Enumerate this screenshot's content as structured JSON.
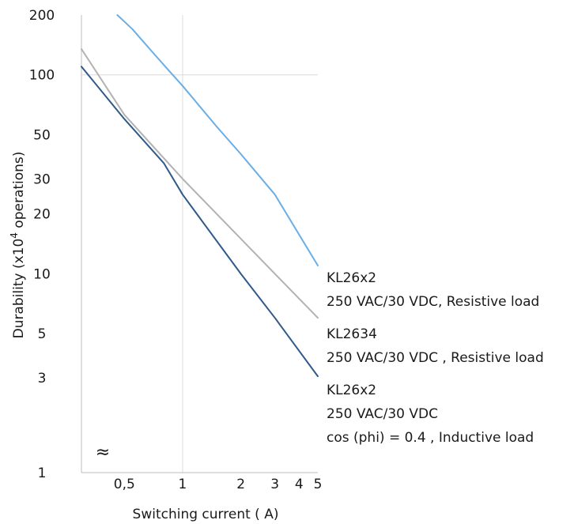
{
  "chart_data": {
    "type": "line",
    "title": "",
    "xlabel": "Switching current ( A)",
    "ylabel_parts": {
      "before": "Durability (x10",
      "sup": "4",
      "after": " operations)"
    },
    "x_scale": "log",
    "y_scale": "log",
    "xlim": [
      0.3,
      5
    ],
    "ylim": [
      1,
      200
    ],
    "x_ticks": [
      {
        "value": 0.5,
        "label": "0,5"
      },
      {
        "value": 1,
        "label": "1"
      },
      {
        "value": 2,
        "label": "2"
      },
      {
        "value": 3,
        "label": "3"
      },
      {
        "value": 4,
        "label": "4"
      },
      {
        "value": 5,
        "label": "5"
      }
    ],
    "y_ticks": [
      {
        "value": 1,
        "label": "1"
      },
      {
        "value": 3,
        "label": "3"
      },
      {
        "value": 5,
        "label": "5"
      },
      {
        "value": 10,
        "label": "10"
      },
      {
        "value": 20,
        "label": "20"
      },
      {
        "value": 30,
        "label": "30"
      },
      {
        "value": 50,
        "label": "50"
      },
      {
        "value": 100,
        "label": "100"
      },
      {
        "value": 200,
        "label": "200"
      }
    ],
    "y_axis_break_symbol": "≈",
    "grid": {
      "vertical_at": [
        1
      ],
      "horizontal_at": [
        100
      ]
    },
    "series": [
      {
        "label_lines": [
          "KL26x2",
          "250 VAC/30 VDC, Resistive load"
        ],
        "color": "#6aaee6",
        "points": [
          [
            0.46,
            200
          ],
          [
            0.55,
            170
          ],
          [
            0.7,
            130
          ],
          [
            0.85,
            105
          ],
          [
            1,
            88
          ],
          [
            1.5,
            55
          ],
          [
            2,
            40
          ],
          [
            3,
            25
          ],
          [
            5,
            11
          ]
        ]
      },
      {
        "label_lines": [
          "KL2634",
          "250 VAC/30 VDC , Resistive load"
        ],
        "color": "#b2b2b2",
        "points": [
          [
            0.3,
            135
          ],
          [
            0.5,
            63
          ],
          [
            1,
            30
          ],
          [
            2,
            15
          ],
          [
            3,
            10
          ],
          [
            5,
            6
          ]
        ]
      },
      {
        "label_lines": [
          "KL26x2",
          "250 VAC/30 VDC",
          "cos (phi) = 0.4 , Inductive load"
        ],
        "color": "#2f5a8a",
        "points": [
          [
            0.3,
            110
          ],
          [
            0.5,
            60
          ],
          [
            0.8,
            36
          ],
          [
            1,
            25
          ],
          [
            2,
            10
          ],
          [
            3,
            6
          ],
          [
            5,
            3.05
          ]
        ]
      }
    ]
  }
}
